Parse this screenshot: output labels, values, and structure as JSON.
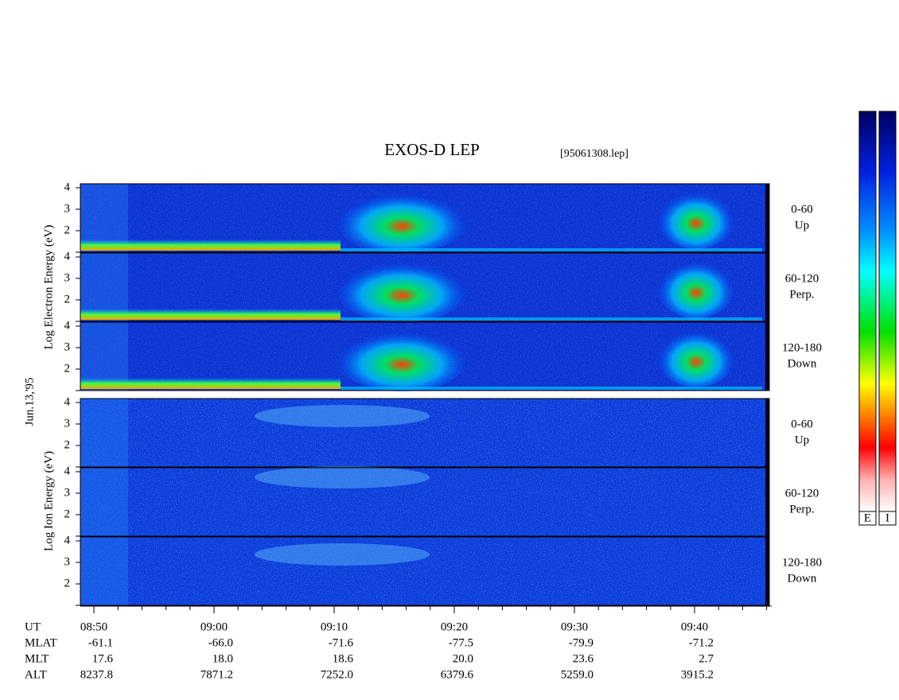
{
  "title": "EXOS-D LEP",
  "file": "[95061308.lep]",
  "date_label": "Jun.13,'95",
  "electron_axis_label": "Log  Electron  Energy (eV)",
  "ion_axis_label": "Log  Ion  Energy (eV)",
  "energy_ticks": [
    2,
    3,
    4
  ],
  "pitch_panels": [
    {
      "range": "0-60",
      "direction": "Up"
    },
    {
      "range": "60-120",
      "direction": "Perp."
    },
    {
      "range": "120-180",
      "direction": "Down"
    }
  ],
  "colorbar_labels": [
    "E",
    "I"
  ],
  "time_axis": {
    "rows": [
      {
        "name": "UT",
        "values": [
          "08:50",
          "09:00",
          "09:10",
          "09:20",
          "09:30",
          "09:40"
        ]
      },
      {
        "name": "MLAT",
        "values": [
          "-61.1",
          "-66.0",
          "-71.6",
          "-77.5",
          "-79.9",
          "-71.2"
        ]
      },
      {
        "name": "MLT",
        "values": [
          "17.6",
          "18.0",
          "18.6",
          "20.0",
          "23.6",
          "2.7"
        ]
      },
      {
        "name": "ALT",
        "values": [
          "8237.8",
          "7871.2",
          "7252.0",
          "6379.6",
          "5259.0",
          "3915.2"
        ]
      }
    ]
  }
}
